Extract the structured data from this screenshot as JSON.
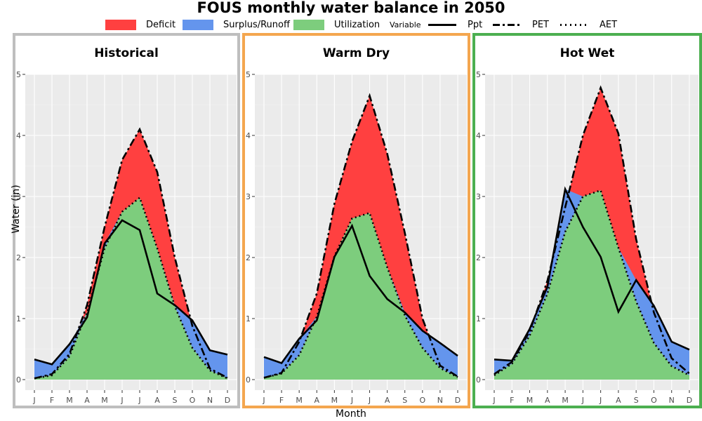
{
  "chart_data": {
    "type": "area",
    "title": "FOUS monthly water balance in 2050",
    "xlabel": "Month",
    "ylabel": "Water (in)",
    "months": [
      "J",
      "F",
      "M",
      "A",
      "M",
      "J",
      "J",
      "A",
      "S",
      "O",
      "N",
      "D"
    ],
    "ylim": [
      0,
      5
    ],
    "yticks": [
      0,
      1,
      2,
      3,
      4,
      5
    ],
    "legend": {
      "fills": [
        {
          "label": "Deficit",
          "color": "#ff4040"
        },
        {
          "label": "Surplus/Runoff",
          "color": "#6495ed"
        },
        {
          "label": "Utilization",
          "color": "#7dcd7d"
        }
      ],
      "variable_title": "Variable",
      "lines": [
        {
          "label": "Ppt",
          "style": "solid"
        },
        {
          "label": "PET",
          "style": "longdash"
        },
        {
          "label": "AET",
          "style": "dotted"
        }
      ]
    },
    "panels": [
      {
        "title": "Historical",
        "border_color": "#bebebe",
        "ppt": [
          0.33,
          0.25,
          0.58,
          1.02,
          2.23,
          2.61,
          2.45,
          1.41,
          1.22,
          0.97,
          0.48,
          0.41
        ],
        "pet": [
          0.02,
          0.09,
          0.42,
          1.22,
          2.5,
          3.6,
          4.1,
          3.4,
          2.0,
          0.88,
          0.18,
          0.03
        ],
        "aet": [
          0.02,
          0.07,
          0.38,
          1.1,
          2.15,
          2.75,
          2.98,
          2.15,
          1.2,
          0.52,
          0.15,
          0.02
        ]
      },
      {
        "title": "Warm Dry",
        "border_color": "#f4a64f",
        "ppt": [
          0.37,
          0.27,
          0.67,
          0.97,
          2.01,
          2.52,
          1.7,
          1.32,
          1.1,
          0.8,
          0.6,
          0.39
        ],
        "pet": [
          0.03,
          0.11,
          0.62,
          1.41,
          2.88,
          3.9,
          4.65,
          3.7,
          2.4,
          1.0,
          0.23,
          0.05
        ],
        "aet": [
          0.03,
          0.1,
          0.4,
          1.03,
          2.02,
          2.64,
          2.73,
          1.84,
          1.05,
          0.52,
          0.19,
          0.04
        ]
      },
      {
        "title": "Hot Wet",
        "border_color": "#4caf50",
        "ppt": [
          0.33,
          0.31,
          0.83,
          1.52,
          3.12,
          2.5,
          2.01,
          1.11,
          1.63,
          1.21,
          0.62,
          0.49
        ],
        "pet": [
          0.09,
          0.29,
          0.79,
          1.62,
          2.82,
          4.0,
          4.78,
          4.03,
          2.3,
          1.1,
          0.35,
          0.1
        ],
        "aet": [
          0.07,
          0.26,
          0.72,
          1.41,
          2.42,
          3.0,
          3.1,
          2.16,
          1.28,
          0.6,
          0.22,
          0.07
        ]
      }
    ]
  }
}
